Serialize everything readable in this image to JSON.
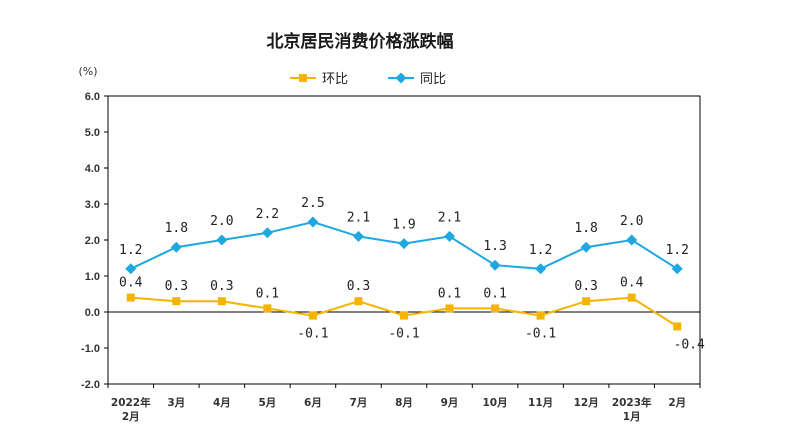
{
  "chart_data": {
    "type": "line",
    "title": "北京居民消费价格涨跌幅",
    "unit": "(%)",
    "ylim": [
      -2.0,
      6.0
    ],
    "yticks": [
      "6.0",
      "5.0",
      "4.0",
      "3.0",
      "2.0",
      "1.0",
      "0.0",
      "-1.0",
      "-2.0"
    ],
    "categories": [
      [
        "2022年",
        "2月"
      ],
      [
        "3月"
      ],
      [
        "4月"
      ],
      [
        "5月"
      ],
      [
        "6月"
      ],
      [
        "7月"
      ],
      [
        "8月"
      ],
      [
        "9月"
      ],
      [
        "10月"
      ],
      [
        "11月"
      ],
      [
        "12月"
      ],
      [
        "2023年",
        "1月"
      ],
      [
        "2月"
      ]
    ],
    "legend_position": "top-center",
    "series": [
      {
        "name": "环比",
        "color": "#f5b400",
        "marker": "square",
        "values": [
          0.4,
          0.3,
          0.3,
          0.1,
          -0.1,
          0.3,
          -0.1,
          0.1,
          0.1,
          -0.1,
          0.3,
          0.4,
          -0.4
        ],
        "labels": [
          "0.4",
          "0.3",
          "0.3",
          "0.1",
          "-0.1",
          "0.3",
          "-0.1",
          "0.1",
          "0.1",
          "-0.1",
          "0.3",
          "0.4",
          "-0.4"
        ]
      },
      {
        "name": "同比",
        "color": "#1ea8e0",
        "marker": "diamond",
        "values": [
          1.2,
          1.8,
          2.0,
          2.2,
          2.5,
          2.1,
          1.9,
          2.1,
          1.3,
          1.2,
          1.8,
          2.0,
          1.2
        ],
        "labels": [
          "1.2",
          "1.8",
          "2.0",
          "2.2",
          "2.5",
          "2.1",
          "1.9",
          "2.1",
          "1.3",
          "1.2",
          "1.8",
          "2.0",
          "1.2"
        ]
      }
    ]
  }
}
